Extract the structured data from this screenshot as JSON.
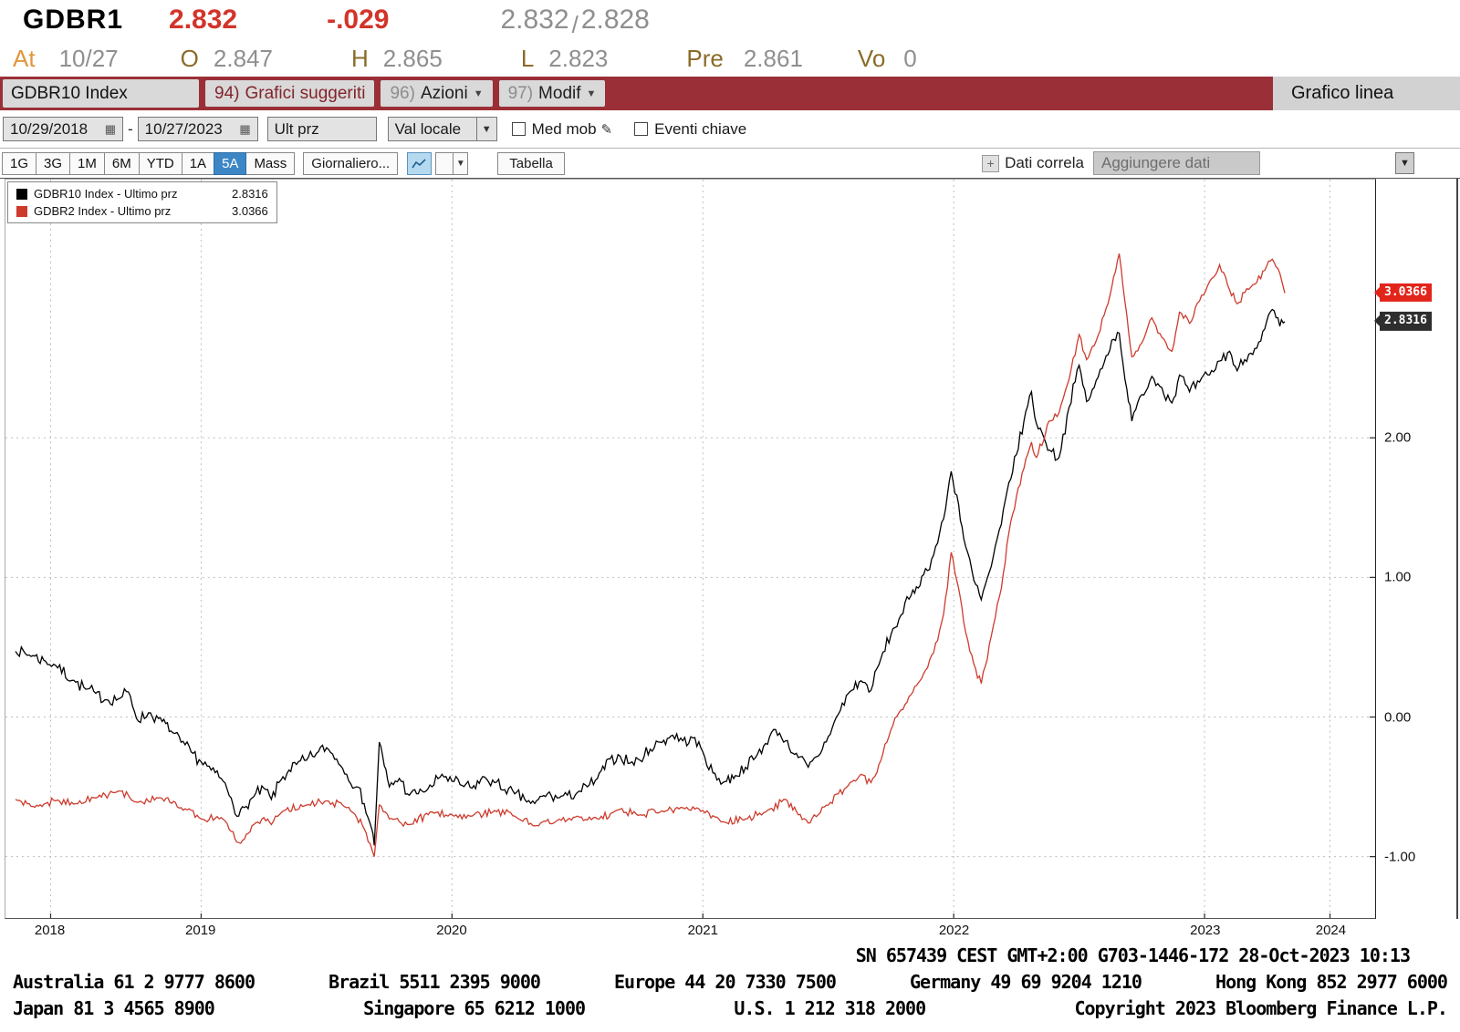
{
  "header": {
    "ticker": "GDBR1",
    "last": "2.832",
    "change": "-.029",
    "bid": "2.832",
    "separator": "/",
    "ask": "2.828",
    "at_label": "At",
    "at_value": "10/27",
    "open_label": "O",
    "open": "2.847",
    "high_label": "H",
    "high": "2.865",
    "low_label": "L",
    "low": "2.823",
    "prev_label": "Pre",
    "prev": "2.861",
    "vol_label": "Vo",
    "vol": "0"
  },
  "icons": {
    "calendar": "▦",
    "caret": "▼",
    "pencil": "✎",
    "plus": "+"
  },
  "colors": {
    "maroon": "#9b2f37",
    "accent_blue": "#3d86c6",
    "price_red": "#d2342a",
    "amber": "#e0973c",
    "label_brown": "#8a6c28",
    "value_gray": "#8f8f8f"
  },
  "menubar": {
    "security_field": "GDBR10 Index",
    "items": [
      {
        "num": "94)",
        "label": "Grafici suggeriti",
        "arrow": false
      },
      {
        "num": "96)",
        "label": "Azioni",
        "arrow": true
      },
      {
        "num": "97)",
        "label": "Modif",
        "arrow": true
      }
    ],
    "title": "Grafico linea"
  },
  "toolbar": {
    "date_from": "10/29/2018",
    "date_separator": "-",
    "date_to": "10/27/2023",
    "field_value": "Ult prz",
    "currency_value": "Val locale",
    "checkbox_moving_avg": "Med mob",
    "checkbox_key_events": "Eventi chiave"
  },
  "periodbar": {
    "tabs": [
      "1G",
      "3G",
      "1M",
      "6M",
      "YTD",
      "1A",
      "5A",
      "Mass"
    ],
    "active_tab": "5A",
    "frequency": "Giornaliero...",
    "table_button": "Tabella",
    "related_data": "Dati correla",
    "add_data_placeholder": "Aggiungere dati"
  },
  "chart_data": {
    "type": "line",
    "title": "Grafico linea",
    "x_unit": "decimal_year",
    "x_range": [
      2018.72,
      2024.18
    ],
    "ylim": [
      -1.44,
      3.85
    ],
    "grid": "dashed",
    "legend_position": "top-left",
    "y_axis_side": "right",
    "y_ticks": [
      2.0,
      1.0,
      0.0,
      -1.0
    ],
    "x_ticks": [
      {
        "label": "2018",
        "t": 2018.9
      },
      {
        "label": "2019",
        "t": 2019.5
      },
      {
        "label": "2020",
        "t": 2020.5
      },
      {
        "label": "2021",
        "t": 2021.5
      },
      {
        "label": "2022",
        "t": 2022.5
      },
      {
        "label": "2023",
        "t": 2023.5
      },
      {
        "label": "2024",
        "t": 2024.0
      }
    ],
    "badges": [
      {
        "value": "3.0366",
        "bg": "#e2251b"
      },
      {
        "value": "2.8316",
        "bg": "#2e2e2e"
      }
    ],
    "series": [
      {
        "name": "GDBR10 Index",
        "legend_label": "GDBR10 Index - Ultimo prz",
        "last_label": "2.8316",
        "last": 2.8316,
        "color": "#000000",
        "points": [
          [
            2018.76,
            0.47
          ],
          [
            2018.83,
            0.44
          ],
          [
            2018.88,
            0.4
          ],
          [
            2018.92,
            0.37
          ],
          [
            2019.0,
            0.25
          ],
          [
            2019.04,
            0.2
          ],
          [
            2019.08,
            0.17
          ],
          [
            2019.13,
            0.12
          ],
          [
            2019.17,
            0.13
          ],
          [
            2019.21,
            0.18
          ],
          [
            2019.25,
            -0.03
          ],
          [
            2019.29,
            0.03
          ],
          [
            2019.33,
            -0.01
          ],
          [
            2019.38,
            -0.1
          ],
          [
            2019.42,
            -0.18
          ],
          [
            2019.46,
            -0.25
          ],
          [
            2019.5,
            -0.32
          ],
          [
            2019.54,
            -0.38
          ],
          [
            2019.58,
            -0.44
          ],
          [
            2019.62,
            -0.58
          ],
          [
            2019.65,
            -0.71
          ],
          [
            2019.68,
            -0.64
          ],
          [
            2019.71,
            -0.57
          ],
          [
            2019.75,
            -0.51
          ],
          [
            2019.78,
            -0.59
          ],
          [
            2019.81,
            -0.47
          ],
          [
            2019.85,
            -0.38
          ],
          [
            2019.88,
            -0.34
          ],
          [
            2019.92,
            -0.31
          ],
          [
            2019.96,
            -0.26
          ],
          [
            2020.0,
            -0.22
          ],
          [
            2020.04,
            -0.3
          ],
          [
            2020.08,
            -0.41
          ],
          [
            2020.12,
            -0.5
          ],
          [
            2020.15,
            -0.62
          ],
          [
            2020.18,
            -0.8
          ],
          [
            2020.19,
            -0.92
          ],
          [
            2020.21,
            -0.18
          ],
          [
            2020.23,
            -0.35
          ],
          [
            2020.25,
            -0.5
          ],
          [
            2020.29,
            -0.44
          ],
          [
            2020.33,
            -0.56
          ],
          [
            2020.38,
            -0.53
          ],
          [
            2020.42,
            -0.5
          ],
          [
            2020.46,
            -0.41
          ],
          [
            2020.5,
            -0.46
          ],
          [
            2020.54,
            -0.49
          ],
          [
            2020.58,
            -0.51
          ],
          [
            2020.63,
            -0.43
          ],
          [
            2020.67,
            -0.47
          ],
          [
            2020.71,
            -0.52
          ],
          [
            2020.75,
            -0.55
          ],
          [
            2020.79,
            -0.59
          ],
          [
            2020.83,
            -0.62
          ],
          [
            2020.88,
            -0.55
          ],
          [
            2020.92,
            -0.58
          ],
          [
            2020.96,
            -0.56
          ],
          [
            2021.0,
            -0.54
          ],
          [
            2021.04,
            -0.5
          ],
          [
            2021.08,
            -0.44
          ],
          [
            2021.13,
            -0.3
          ],
          [
            2021.17,
            -0.28
          ],
          [
            2021.21,
            -0.33
          ],
          [
            2021.25,
            -0.31
          ],
          [
            2021.29,
            -0.23
          ],
          [
            2021.33,
            -0.18
          ],
          [
            2021.38,
            -0.13
          ],
          [
            2021.42,
            -0.17
          ],
          [
            2021.46,
            -0.15
          ],
          [
            2021.5,
            -0.25
          ],
          [
            2021.54,
            -0.4
          ],
          [
            2021.58,
            -0.47
          ],
          [
            2021.63,
            -0.42
          ],
          [
            2021.67,
            -0.36
          ],
          [
            2021.71,
            -0.29
          ],
          [
            2021.75,
            -0.19
          ],
          [
            2021.79,
            -0.09
          ],
          [
            2021.83,
            -0.17
          ],
          [
            2021.88,
            -0.29
          ],
          [
            2021.92,
            -0.36
          ],
          [
            2021.96,
            -0.28
          ],
          [
            2022.0,
            -0.14
          ],
          [
            2022.04,
            0.02
          ],
          [
            2022.08,
            0.17
          ],
          [
            2022.13,
            0.26
          ],
          [
            2022.17,
            0.19
          ],
          [
            2022.21,
            0.42
          ],
          [
            2022.25,
            0.59
          ],
          [
            2022.29,
            0.73
          ],
          [
            2022.33,
            0.87
          ],
          [
            2022.38,
            1.02
          ],
          [
            2022.42,
            1.16
          ],
          [
            2022.46,
            1.42
          ],
          [
            2022.49,
            1.76
          ],
          [
            2022.52,
            1.52
          ],
          [
            2022.54,
            1.28
          ],
          [
            2022.58,
            0.98
          ],
          [
            2022.61,
            0.84
          ],
          [
            2022.65,
            1.08
          ],
          [
            2022.69,
            1.38
          ],
          [
            2022.72,
            1.68
          ],
          [
            2022.75,
            1.88
          ],
          [
            2022.78,
            2.12
          ],
          [
            2022.81,
            2.33
          ],
          [
            2022.83,
            2.1
          ],
          [
            2022.86,
            2.0
          ],
          [
            2022.89,
            1.9
          ],
          [
            2022.92,
            1.86
          ],
          [
            2022.96,
            2.22
          ],
          [
            2023.0,
            2.52
          ],
          [
            2023.03,
            2.26
          ],
          [
            2023.06,
            2.36
          ],
          [
            2023.1,
            2.54
          ],
          [
            2023.13,
            2.7
          ],
          [
            2023.16,
            2.75
          ],
          [
            2023.19,
            2.35
          ],
          [
            2023.21,
            2.12
          ],
          [
            2023.25,
            2.31
          ],
          [
            2023.29,
            2.44
          ],
          [
            2023.33,
            2.36
          ],
          [
            2023.37,
            2.25
          ],
          [
            2023.4,
            2.45
          ],
          [
            2023.44,
            2.33
          ],
          [
            2023.48,
            2.4
          ],
          [
            2023.52,
            2.45
          ],
          [
            2023.56,
            2.55
          ],
          [
            2023.6,
            2.62
          ],
          [
            2023.63,
            2.48
          ],
          [
            2023.66,
            2.56
          ],
          [
            2023.7,
            2.64
          ],
          [
            2023.74,
            2.78
          ],
          [
            2023.77,
            2.92
          ],
          [
            2023.8,
            2.8
          ],
          [
            2023.82,
            2.8316
          ]
        ]
      },
      {
        "name": "GDBR2 Index",
        "legend_label": "GDBR2 Index - Ultimo prz",
        "last_label": "3.0366",
        "last": 3.0366,
        "color": "#cd3b2d",
        "points": [
          [
            2018.76,
            -0.59
          ],
          [
            2018.83,
            -0.64
          ],
          [
            2018.88,
            -0.62
          ],
          [
            2018.92,
            -0.6
          ],
          [
            2019.0,
            -0.62
          ],
          [
            2019.08,
            -0.58
          ],
          [
            2019.17,
            -0.53
          ],
          [
            2019.25,
            -0.61
          ],
          [
            2019.33,
            -0.58
          ],
          [
            2019.42,
            -0.65
          ],
          [
            2019.5,
            -0.73
          ],
          [
            2019.58,
            -0.72
          ],
          [
            2019.62,
            -0.82
          ],
          [
            2019.65,
            -0.9
          ],
          [
            2019.68,
            -0.84
          ],
          [
            2019.71,
            -0.77
          ],
          [
            2019.75,
            -0.72
          ],
          [
            2019.78,
            -0.77
          ],
          [
            2019.83,
            -0.67
          ],
          [
            2019.92,
            -0.63
          ],
          [
            2020.0,
            -0.6
          ],
          [
            2020.08,
            -0.65
          ],
          [
            2020.12,
            -0.72
          ],
          [
            2020.15,
            -0.8
          ],
          [
            2020.19,
            -1.0
          ],
          [
            2020.21,
            -0.63
          ],
          [
            2020.25,
            -0.73
          ],
          [
            2020.33,
            -0.77
          ],
          [
            2020.42,
            -0.68
          ],
          [
            2020.5,
            -0.7
          ],
          [
            2020.58,
            -0.71
          ],
          [
            2020.67,
            -0.67
          ],
          [
            2020.75,
            -0.71
          ],
          [
            2020.83,
            -0.78
          ],
          [
            2020.92,
            -0.74
          ],
          [
            2021.0,
            -0.71
          ],
          [
            2021.08,
            -0.73
          ],
          [
            2021.17,
            -0.66
          ],
          [
            2021.25,
            -0.7
          ],
          [
            2021.33,
            -0.68
          ],
          [
            2021.42,
            -0.65
          ],
          [
            2021.5,
            -0.67
          ],
          [
            2021.58,
            -0.75
          ],
          [
            2021.67,
            -0.73
          ],
          [
            2021.75,
            -0.68
          ],
          [
            2021.83,
            -0.59
          ],
          [
            2021.88,
            -0.7
          ],
          [
            2021.92,
            -0.76
          ],
          [
            2021.96,
            -0.7
          ],
          [
            2022.0,
            -0.63
          ],
          [
            2022.04,
            -0.55
          ],
          [
            2022.08,
            -0.49
          ],
          [
            2022.13,
            -0.41
          ],
          [
            2022.17,
            -0.47
          ],
          [
            2022.21,
            -0.31
          ],
          [
            2022.25,
            -0.09
          ],
          [
            2022.29,
            0.05
          ],
          [
            2022.33,
            0.16
          ],
          [
            2022.38,
            0.31
          ],
          [
            2022.42,
            0.46
          ],
          [
            2022.46,
            0.74
          ],
          [
            2022.49,
            1.18
          ],
          [
            2022.52,
            0.92
          ],
          [
            2022.54,
            0.68
          ],
          [
            2022.58,
            0.38
          ],
          [
            2022.61,
            0.24
          ],
          [
            2022.65,
            0.58
          ],
          [
            2022.69,
            0.92
          ],
          [
            2022.72,
            1.32
          ],
          [
            2022.75,
            1.58
          ],
          [
            2022.78,
            1.78
          ],
          [
            2022.81,
            1.97
          ],
          [
            2022.83,
            1.86
          ],
          [
            2022.88,
            2.12
          ],
          [
            2022.92,
            2.18
          ],
          [
            2022.96,
            2.42
          ],
          [
            2023.0,
            2.74
          ],
          [
            2023.03,
            2.56
          ],
          [
            2023.06,
            2.66
          ],
          [
            2023.1,
            2.88
          ],
          [
            2023.13,
            3.08
          ],
          [
            2023.16,
            3.32
          ],
          [
            2023.19,
            2.88
          ],
          [
            2023.21,
            2.58
          ],
          [
            2023.25,
            2.68
          ],
          [
            2023.29,
            2.86
          ],
          [
            2023.33,
            2.72
          ],
          [
            2023.37,
            2.62
          ],
          [
            2023.4,
            2.9
          ],
          [
            2023.44,
            2.82
          ],
          [
            2023.48,
            2.98
          ],
          [
            2023.52,
            3.12
          ],
          [
            2023.56,
            3.24
          ],
          [
            2023.6,
            3.06
          ],
          [
            2023.63,
            2.96
          ],
          [
            2023.66,
            3.04
          ],
          [
            2023.7,
            3.1
          ],
          [
            2023.74,
            3.2
          ],
          [
            2023.77,
            3.28
          ],
          [
            2023.8,
            3.18
          ],
          [
            2023.82,
            3.0366
          ]
        ]
      }
    ]
  },
  "footer": {
    "session_line": "SN 657439 CEST  GMT+2:00 G703-1446-172 28-Oct-2023 10:13",
    "contact_line1": [
      "Australia 61 2 9777 8600",
      "Brazil 5511 2395 9000",
      "Europe 44 20 7330 7500",
      "Germany 49 69 9204 1210",
      "Hong Kong 852 2977 6000"
    ],
    "contact_line2": [
      "Japan 81 3 4565 8900",
      "Singapore 65 6212 1000",
      "U.S. 1 212 318 2000",
      "Copyright 2023 Bloomberg Finance L.P."
    ]
  }
}
